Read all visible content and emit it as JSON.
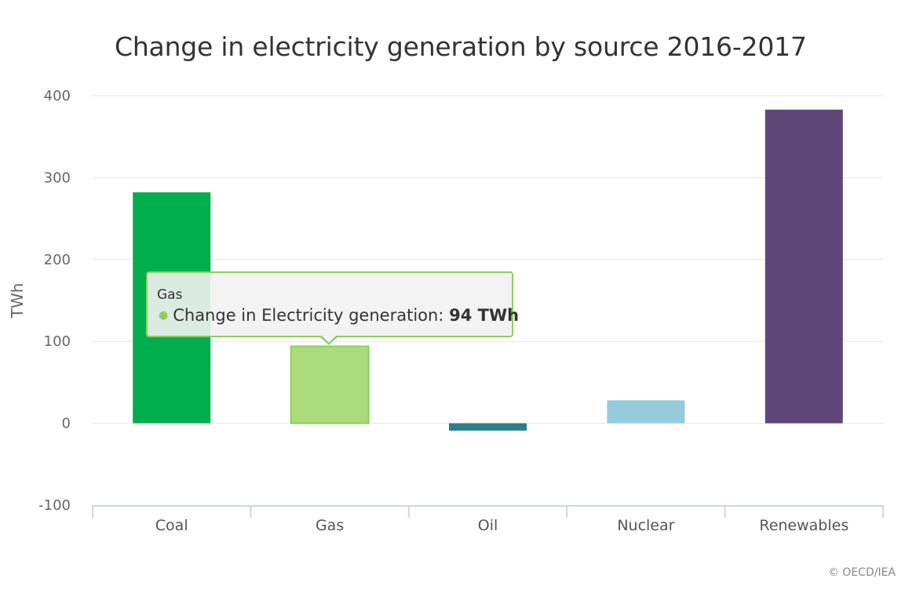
{
  "title": "Change in electricity generation by source 2016-2017",
  "credit": "© OECD/IEA",
  "tooltip": {
    "category": "Gas",
    "series_label": "Change in Electricity generation:",
    "value_label": "94 TWh",
    "color": "#8bd05c"
  },
  "chart_data": {
    "type": "bar",
    "title": "Change in electricity generation by source 2016-2017",
    "xlabel": "",
    "ylabel": "TWh",
    "categories": [
      "Coal",
      "Gas",
      "Oil",
      "Nuclear",
      "Renewables"
    ],
    "series": [
      {
        "name": "Change in Electricity generation",
        "values": [
          282,
          94,
          -9,
          28,
          383
        ]
      }
    ],
    "colors": [
      "#00ae4d",
      "#acdb7a",
      "#2b7f8a",
      "#95cbdd",
      "#5e4778"
    ],
    "highlight_border": "#8bd05c",
    "yticks": [
      -100,
      0,
      100,
      200,
      300,
      400
    ],
    "ylim": [
      -100,
      400
    ],
    "grid": true,
    "legend": "none",
    "unit": "TWh"
  }
}
